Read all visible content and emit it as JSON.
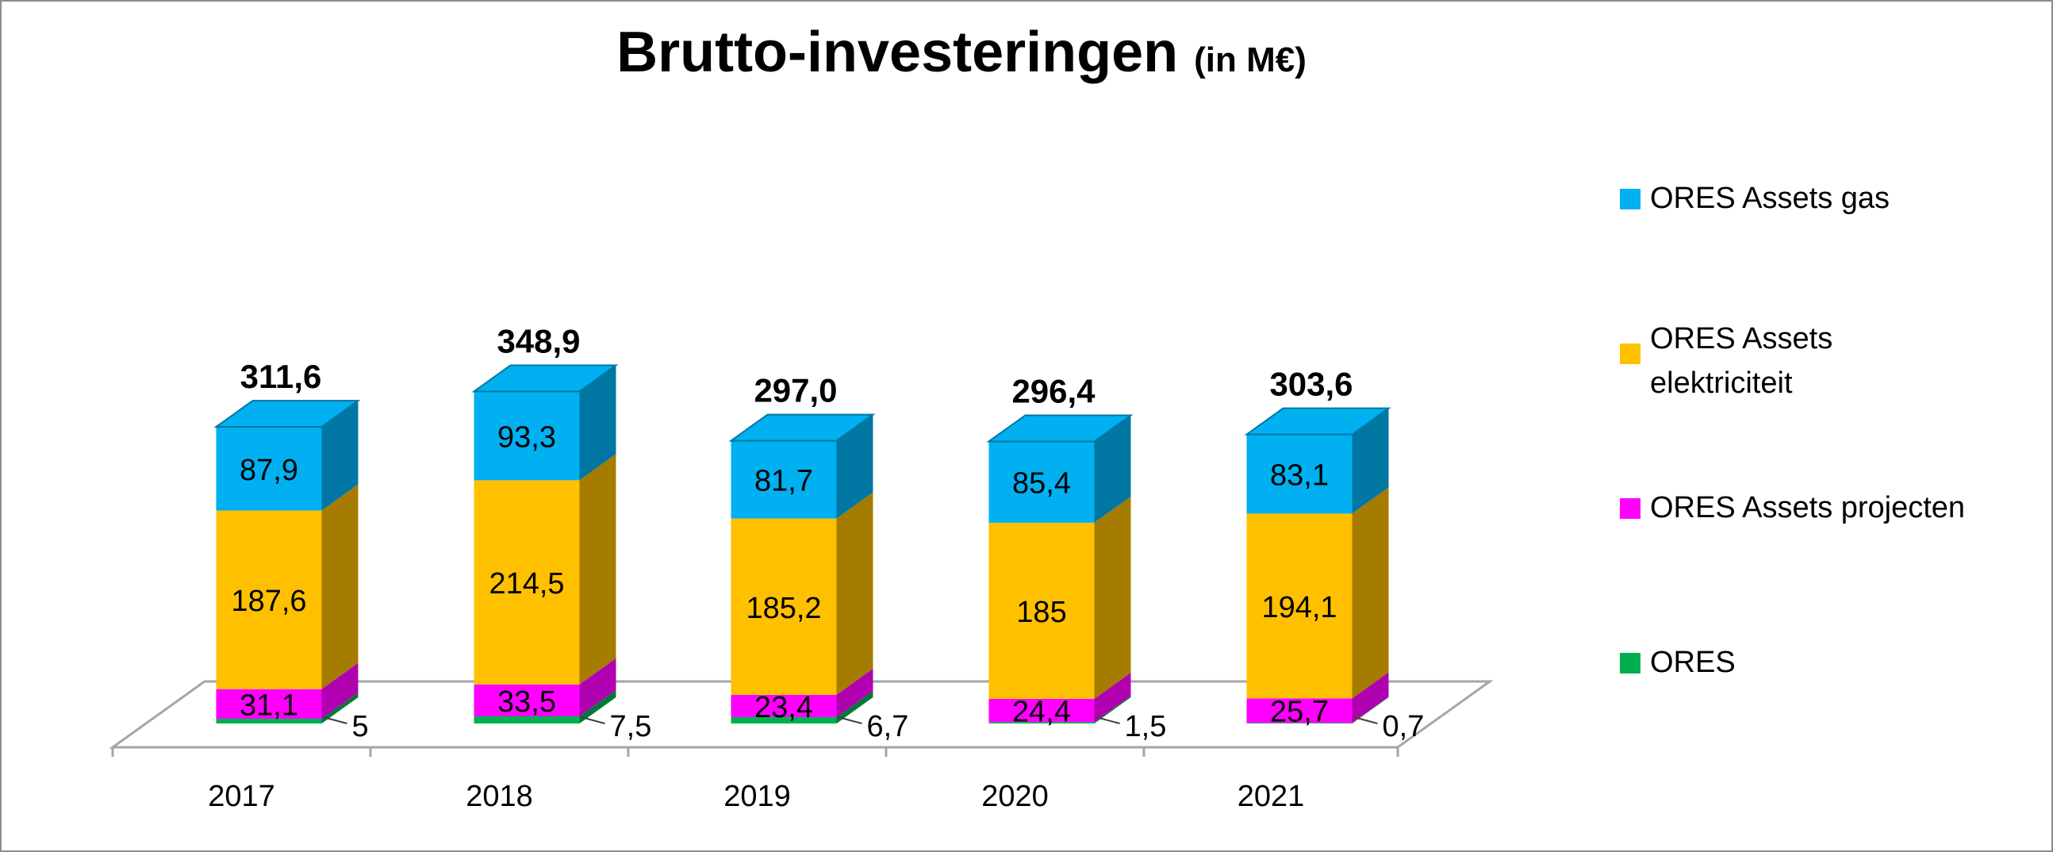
{
  "chart_data": {
    "type": "bar",
    "stacked": true,
    "three_d": true,
    "title": "Brutto-investeringen",
    "title_unit": "(in M€)",
    "categories": [
      "2017",
      "2018",
      "2019",
      "2020",
      "2021"
    ],
    "series": [
      {
        "name": "ORES",
        "color": "#00b050",
        "side_color": "#007a37",
        "values": [
          5,
          7.5,
          6.7,
          1.5,
          0.7
        ],
        "labels": [
          "5",
          "7,5",
          "6,7",
          "1,5",
          "0,7"
        ]
      },
      {
        "name": "ORES Assets projecten",
        "color": "#ff00ff",
        "side_color": "#b000b0",
        "values": [
          31.1,
          33.5,
          23.4,
          24.4,
          25.7
        ],
        "labels": [
          "31,1",
          "33,5",
          "23,4",
          "24,4",
          "25,7"
        ]
      },
      {
        "name": "ORES Assets elektriciteit",
        "color": "#ffc000",
        "side_color": "#a67c00",
        "values": [
          187.6,
          214.5,
          185.2,
          185,
          194.1
        ],
        "labels": [
          "187,6",
          "214,5",
          "185,2",
          "185",
          "194,1"
        ]
      },
      {
        "name": "ORES Assets gas",
        "color": "#00b0f0",
        "side_color": "#0077a3",
        "values": [
          87.9,
          93.3,
          81.7,
          85.4,
          83.1
        ],
        "labels": [
          "87,9",
          "93,3",
          "81,7",
          "85,4",
          "83,1"
        ]
      }
    ],
    "totals": [
      "311,6",
      "348,9",
      "297,0",
      "296,4",
      "303,6"
    ],
    "legend_order": [
      "ORES Assets gas",
      "ORES Assets elektriciteit",
      "ORES Assets projecten",
      "ORES"
    ],
    "legend_position": "right",
    "ylim": [
      0,
      380
    ],
    "grid": false
  }
}
